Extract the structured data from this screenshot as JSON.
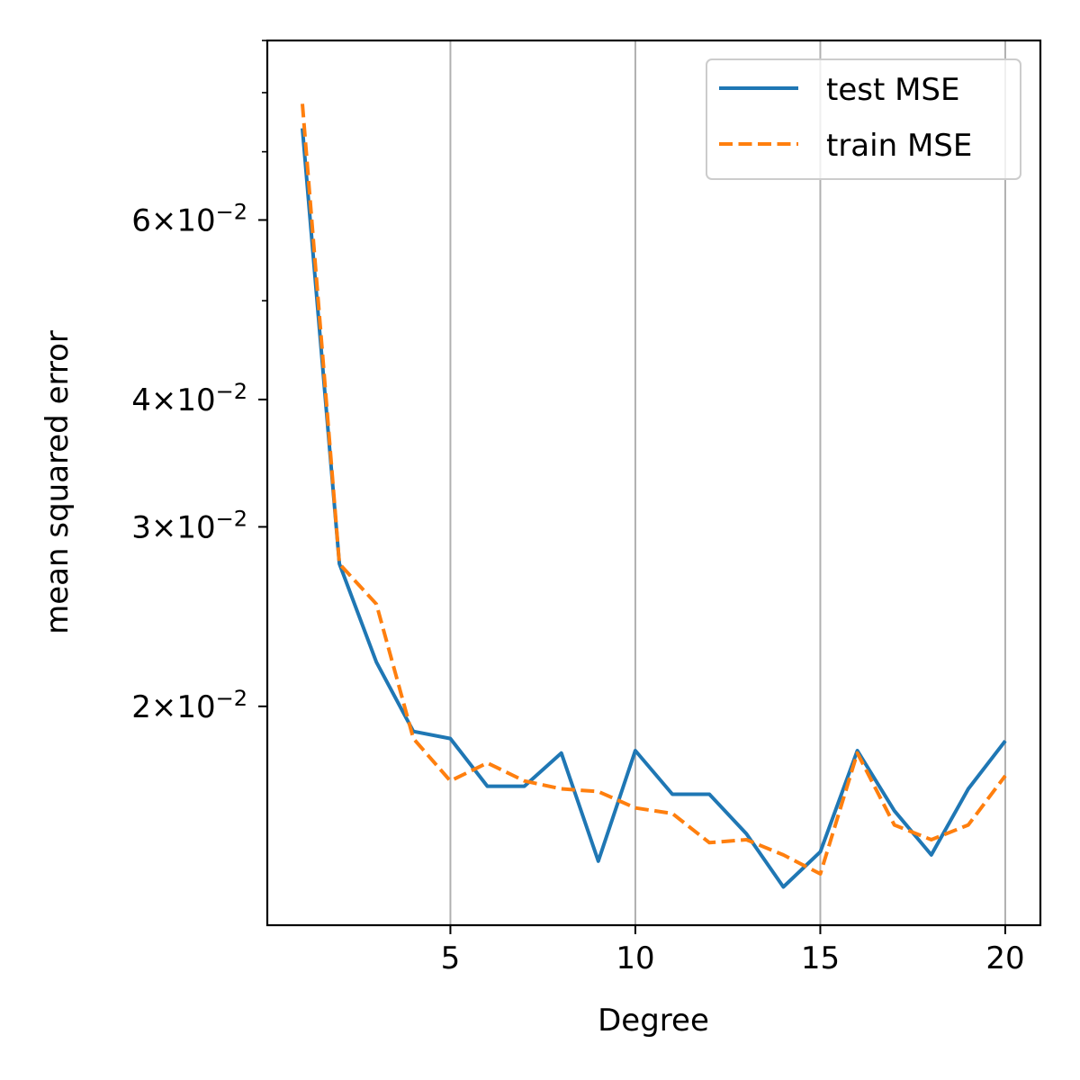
{
  "chart_data": {
    "type": "line",
    "title": "",
    "xlabel": "Degree",
    "ylabel": "mean squared error",
    "xscale": "linear",
    "yscale": "log",
    "xlim": [
      0.05,
      20.95
    ],
    "ylim": [
      0.0122,
      0.09
    ],
    "grid": "x-major",
    "legend_position": "upper right",
    "x_ticks": [
      {
        "value": 5,
        "label": "5"
      },
      {
        "value": 10,
        "label": "10"
      },
      {
        "value": 15,
        "label": "15"
      },
      {
        "value": 20,
        "label": "20"
      }
    ],
    "y_ticks": [
      {
        "value": 0.02,
        "mantissa": "2",
        "exponent": "−2"
      },
      {
        "value": 0.03,
        "mantissa": "3",
        "exponent": "−2"
      },
      {
        "value": 0.04,
        "mantissa": "4",
        "exponent": "−2"
      },
      {
        "value": 0.06,
        "mantissa": "6",
        "exponent": "−2"
      }
    ],
    "y_minor_ticks": [
      0.05,
      0.07,
      0.08,
      0.09
    ],
    "x": [
      1,
      2,
      3,
      4,
      5,
      6,
      7,
      8,
      9,
      10,
      11,
      12,
      13,
      14,
      15,
      16,
      17,
      18,
      19,
      20
    ],
    "series": [
      {
        "name": "test MSE",
        "color": "#1f77b4",
        "dash": "solid",
        "values": [
          0.0738,
          0.0276,
          0.0221,
          0.0189,
          0.0186,
          0.0167,
          0.0167,
          0.018,
          0.0141,
          0.0181,
          0.0164,
          0.0164,
          0.015,
          0.0133,
          0.0144,
          0.0181,
          0.0158,
          0.0143,
          0.0166,
          0.0185
        ]
      },
      {
        "name": "train MSE",
        "color": "#ff7f0e",
        "dash": "dashed",
        "values": [
          0.078,
          0.0276,
          0.0252,
          0.0186,
          0.0169,
          0.0176,
          0.0169,
          0.0166,
          0.0165,
          0.0159,
          0.0157,
          0.0147,
          0.0148,
          0.0143,
          0.0137,
          0.018,
          0.0153,
          0.0148,
          0.0153,
          0.0171
        ]
      }
    ]
  }
}
